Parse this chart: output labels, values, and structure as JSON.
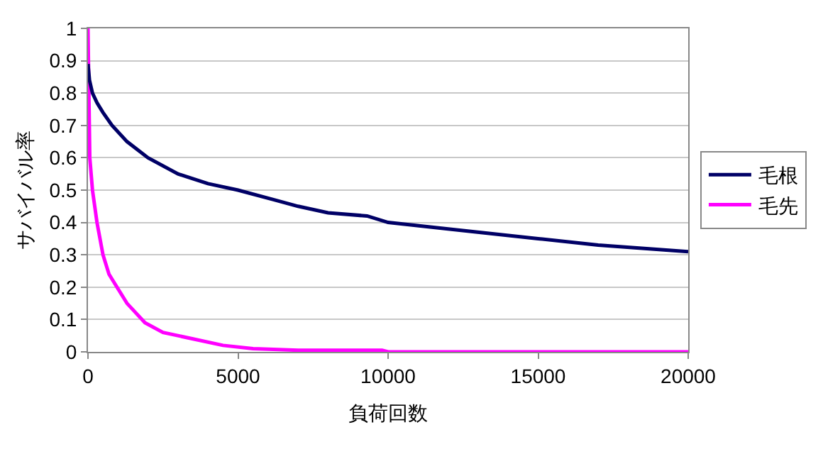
{
  "chart_data": {
    "type": "line",
    "xlabel": "負荷回数",
    "ylabel": "サバイバル率",
    "xlim": [
      0,
      20000
    ],
    "xticks": [
      0,
      5000,
      10000,
      15000,
      20000
    ],
    "ylim": [
      0,
      1
    ],
    "yticks": [
      0,
      0.1,
      0.2,
      0.3,
      0.4,
      0.5,
      0.6,
      0.7,
      0.8,
      0.9,
      1
    ],
    "grid": "y",
    "legend": "right",
    "marker": "none",
    "line_style": "solid",
    "series": [
      {
        "name": "毛根",
        "color": "#000066",
        "x": [
          0,
          50,
          150,
          300,
          500,
          800,
          1300,
          2000,
          3000,
          4000,
          5000,
          6200,
          7000,
          8000,
          9300,
          10000,
          12000,
          15000,
          17000,
          20000
        ],
        "values": [
          0.89,
          0.84,
          0.8,
          0.77,
          0.74,
          0.7,
          0.65,
          0.6,
          0.55,
          0.52,
          0.5,
          0.47,
          0.45,
          0.43,
          0.42,
          0.4,
          0.38,
          0.35,
          0.33,
          0.31
        ]
      },
      {
        "name": "毛先",
        "color": "#ff00ff",
        "x": [
          0,
          30,
          60,
          150,
          300,
          500,
          700,
          900,
          1300,
          1900,
          2500,
          3500,
          4500,
          5500,
          7000,
          9800,
          10000,
          20000
        ],
        "values": [
          1,
          0.8,
          0.6,
          0.5,
          0.4,
          0.3,
          0.24,
          0.21,
          0.15,
          0.09,
          0.06,
          0.04,
          0.02,
          0.01,
          0.005,
          0.005,
          0,
          0
        ]
      }
    ]
  }
}
